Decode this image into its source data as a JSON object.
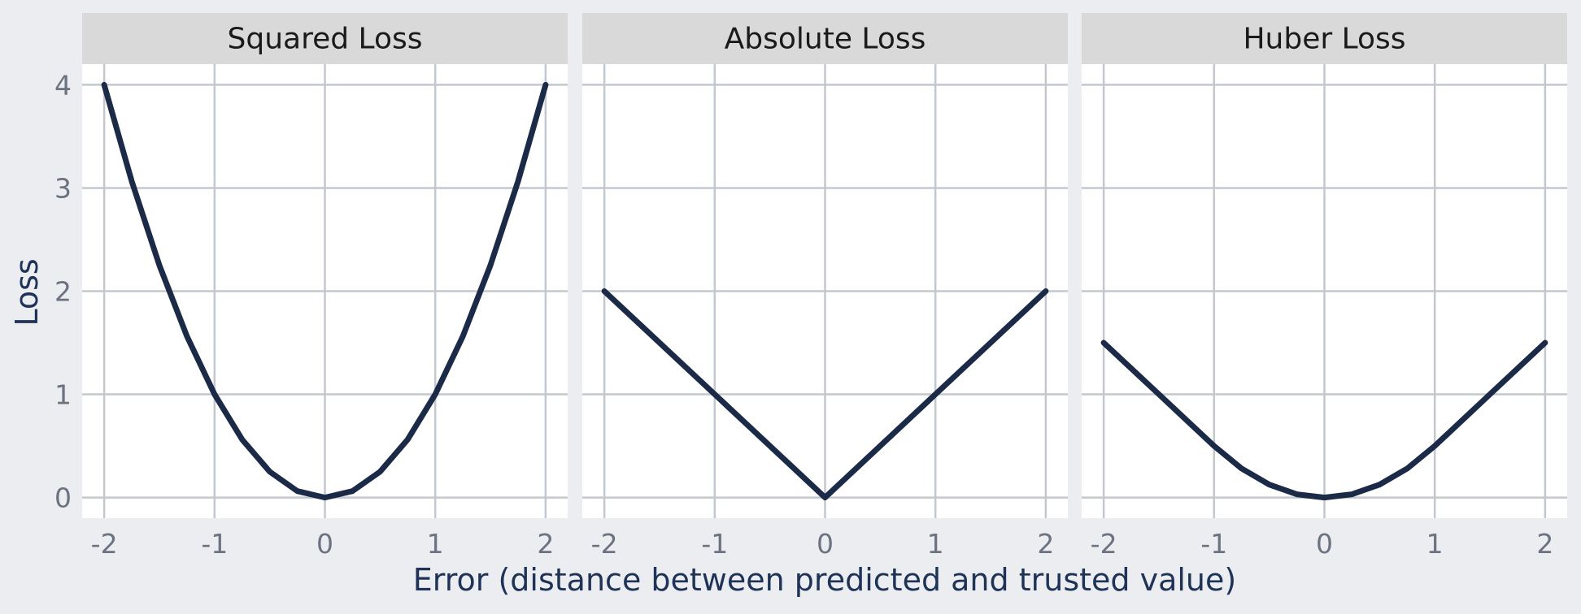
{
  "chart_data": {
    "type": "line",
    "xlabel": "Error (distance between predicted and trusted value)",
    "ylabel": "Loss",
    "xlim": [
      -2.2,
      2.2
    ],
    "ylim": [
      -0.2,
      4.2
    ],
    "x_ticks": [
      -2,
      -1,
      0,
      1,
      2
    ],
    "x_tick_labels": [
      "-2",
      "-1",
      "0",
      "1",
      "2"
    ],
    "y_ticks": [
      0,
      1,
      2,
      3,
      4
    ],
    "y_tick_labels": [
      "0",
      "1",
      "2",
      "3",
      "4"
    ],
    "grid": true,
    "line_color": "#1b2a47",
    "facets": [
      {
        "title": "Squared Loss",
        "x": [
          -2,
          -1.75,
          -1.5,
          -1.25,
          -1,
          -0.75,
          -0.5,
          -0.25,
          0,
          0.25,
          0.5,
          0.75,
          1,
          1.25,
          1.5,
          1.75,
          2
        ],
        "y": [
          4,
          3.0625,
          2.25,
          1.5625,
          1,
          0.5625,
          0.25,
          0.0625,
          0,
          0.0625,
          0.25,
          0.5625,
          1,
          1.5625,
          2.25,
          3.0625,
          4
        ]
      },
      {
        "title": "Absolute Loss",
        "x": [
          -2,
          -1,
          0,
          1,
          2
        ],
        "y": [
          2,
          1,
          0,
          1,
          2
        ]
      },
      {
        "title": "Huber Loss",
        "x": [
          -2,
          -1.75,
          -1.5,
          -1.25,
          -1,
          -0.75,
          -0.5,
          -0.25,
          0,
          0.25,
          0.5,
          0.75,
          1,
          1.25,
          1.5,
          1.75,
          2
        ],
        "y": [
          1.5,
          1.25,
          1,
          0.75,
          0.5,
          0.28125,
          0.125,
          0.03125,
          0,
          0.03125,
          0.125,
          0.28125,
          0.5,
          0.75,
          1,
          1.25,
          1.5
        ]
      }
    ]
  }
}
